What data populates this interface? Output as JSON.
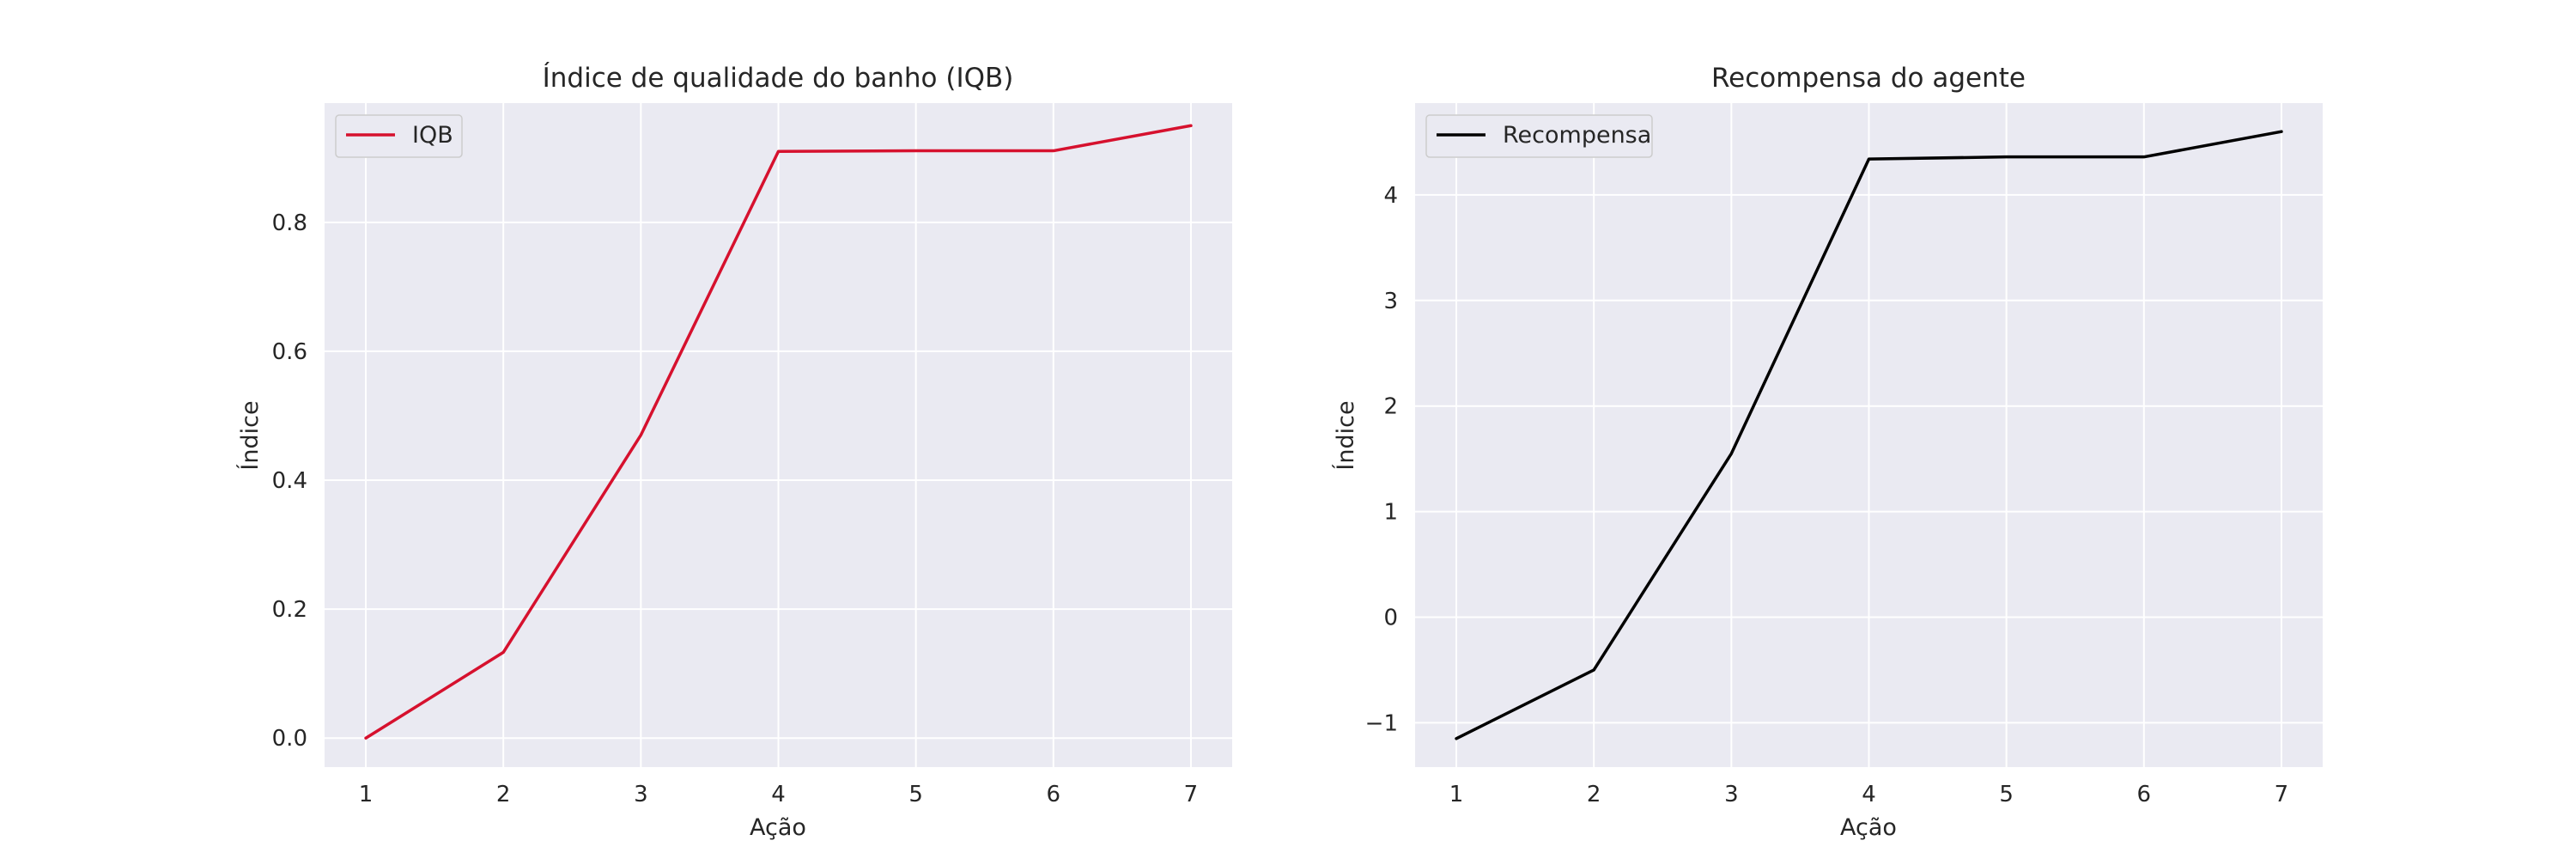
{
  "chart_data": [
    {
      "type": "line",
      "title": "Índice de qualidade do banho (IQB)",
      "xlabel": "Ação",
      "ylabel": "Índice",
      "x": [
        1,
        2,
        3,
        4,
        5,
        6,
        7
      ],
      "series": [
        {
          "name": "IQB",
          "color": "#d6112e",
          "values": [
            0.0,
            0.133,
            0.47,
            0.91,
            0.911,
            0.911,
            0.95
          ]
        }
      ],
      "xlim": [
        0.7,
        7.3
      ],
      "ylim": [
        -0.045,
        0.985
      ],
      "xticks": [
        1,
        2,
        3,
        4,
        5,
        6,
        7
      ],
      "yticks": [
        0.0,
        0.2,
        0.4,
        0.6,
        0.8
      ],
      "ytick_labels": [
        "0.0",
        "0.2",
        "0.4",
        "0.6",
        "0.8"
      ],
      "grid": true,
      "legend_position": "upper-left"
    },
    {
      "type": "line",
      "title": "Recompensa do agente",
      "xlabel": "Ação",
      "ylabel": "Índice",
      "x": [
        1,
        2,
        3,
        4,
        5,
        6,
        7
      ],
      "series": [
        {
          "name": "Recompensa",
          "color": "#000000",
          "values": [
            -1.15,
            -0.5,
            1.55,
            4.34,
            4.36,
            4.36,
            4.6
          ]
        }
      ],
      "xlim": [
        0.7,
        7.3
      ],
      "ylim": [
        -1.42,
        4.87
      ],
      "xticks": [
        1,
        2,
        3,
        4,
        5,
        6,
        7
      ],
      "yticks": [
        -1,
        0,
        1,
        2,
        3,
        4
      ],
      "ytick_labels": [
        "−1",
        "0",
        "1",
        "2",
        "3",
        "4"
      ],
      "grid": true,
      "legend_position": "upper-left"
    }
  ]
}
